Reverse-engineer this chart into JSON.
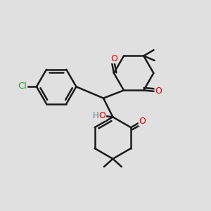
{
  "background_color": "#e0e0e0",
  "bond_color": "#1a1a1a",
  "bond_width": 1.8,
  "atom_colors": {
    "O": "#dd0000",
    "Cl": "#22aa22",
    "H": "#448888",
    "C": "#1a1a1a"
  },
  "font_size_atom": 9,
  "fig_size": [
    3.0,
    3.0
  ],
  "dpi": 100
}
